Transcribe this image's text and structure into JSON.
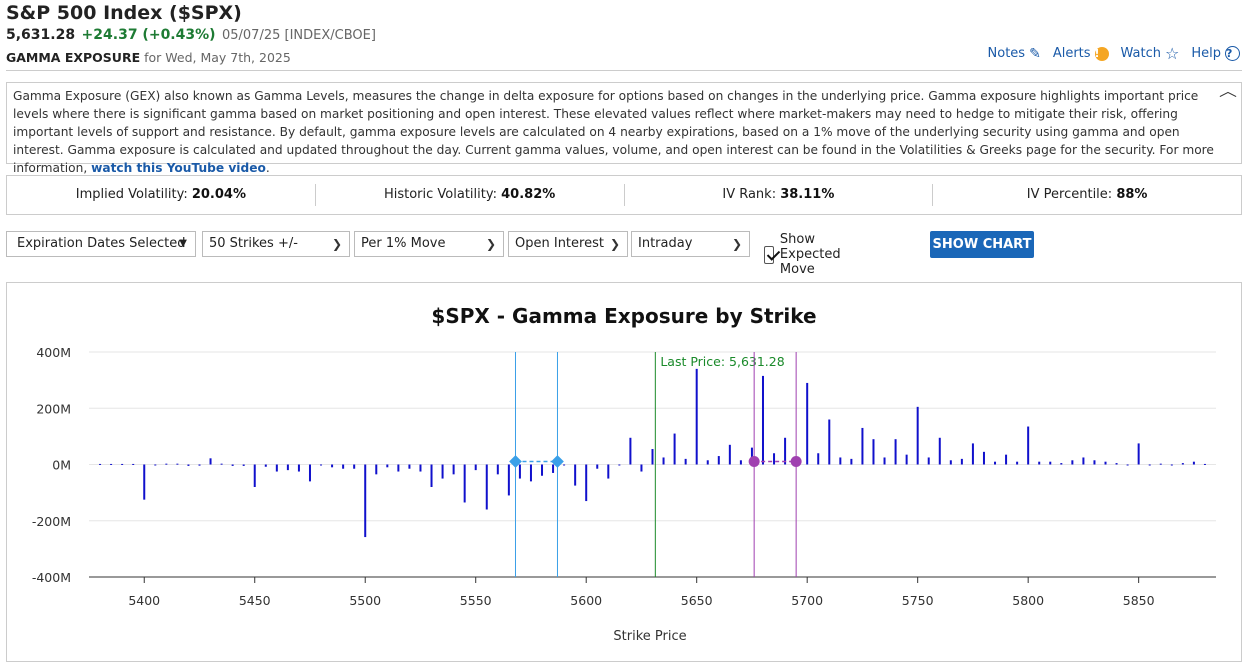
{
  "header": {
    "title": "S&P 500 Index ($SPX)",
    "last": "5,631.28",
    "change": "+24.37 (+0.43%)",
    "meta": "05/07/25 [INDEX/CBOE]",
    "section_label": "GAMMA EXPOSURE",
    "section_date": "for Wed, May 7th, 2025"
  },
  "toplinks": {
    "notes": "Notes",
    "alerts": "Alerts",
    "watch": "Watch",
    "help": "Help"
  },
  "icons": {
    "notes": "edit-icon",
    "alerts": "alert-icon",
    "watch": "star-icon",
    "help": "help-icon",
    "collapse": "chevron-up-icon"
  },
  "description": {
    "text": "Gamma Exposure (GEX) also known as Gamma Levels, measures the change in delta exposure for options based on changes in the underlying price. Gamma exposure highlights important price levels where there is significant gamma based on market positioning and open interest. These elevated values reflect where market-makers may need to hedge to mitigate their risk, offering important levels of support and resistance. By default, gamma exposure levels are calculated on 4 nearby expirations, based on a 1% move of the underlying security using gamma and open interest. Gamma exposure is calculated and updated throughout the day. Current gamma values, volume, and open interest can be found in the Volatilities & Greeks page for the security. For more information, ",
    "link": "watch this YouTube video",
    "tail": "."
  },
  "stats": [
    {
      "label": "Implied Volatility: ",
      "value": "20.04%"
    },
    {
      "label": "Historic Volatility: ",
      "value": "40.82%"
    },
    {
      "label": "IV Rank: ",
      "value": "38.11%"
    },
    {
      "label": "IV Percentile: ",
      "value": "88%"
    }
  ],
  "controls": {
    "expiration": "Expiration Dates Selected",
    "strikes": "50 Strikes +/-",
    "move": "Per 1% Move",
    "metric": "Open Interest",
    "timeframe": "Intraday",
    "expected_move_label": "Show Expected Move",
    "expected_move_checked": true,
    "show_chart": "SHOW CHART"
  },
  "chart_data": {
    "type": "bar",
    "title": "$SPX - Gamma Exposure by Strike",
    "xlabel": "Strike Price",
    "ylabel": "",
    "xlim": [
      5375,
      5885
    ],
    "ylim": [
      -400,
      400
    ],
    "x_ticks": [
      5400,
      5450,
      5500,
      5550,
      5600,
      5650,
      5700,
      5750,
      5800,
      5850
    ],
    "y_ticks": [
      {
        "value": 400,
        "label": "400M"
      },
      {
        "value": 200,
        "label": "200M"
      },
      {
        "value": 0,
        "label": "0M"
      },
      {
        "value": -200,
        "label": "-200M"
      },
      {
        "value": -400,
        "label": "-400M"
      }
    ],
    "grid": true,
    "bar_color": "#1010cc",
    "strikes": [
      5380,
      5385,
      5390,
      5395,
      5400,
      5405,
      5410,
      5415,
      5420,
      5425,
      5430,
      5435,
      5440,
      5445,
      5450,
      5455,
      5460,
      5465,
      5470,
      5475,
      5480,
      5485,
      5490,
      5495,
      5500,
      5505,
      5510,
      5515,
      5520,
      5525,
      5530,
      5535,
      5540,
      5545,
      5550,
      5555,
      5560,
      5565,
      5570,
      5575,
      5580,
      5585,
      5590,
      5595,
      5600,
      5605,
      5610,
      5615,
      5620,
      5625,
      5630,
      5635,
      5640,
      5645,
      5650,
      5655,
      5660,
      5665,
      5670,
      5675,
      5680,
      5685,
      5690,
      5695,
      5700,
      5705,
      5710,
      5715,
      5720,
      5725,
      5730,
      5735,
      5740,
      5745,
      5750,
      5755,
      5760,
      5765,
      5770,
      5775,
      5780,
      5785,
      5790,
      5795,
      5800,
      5805,
      5810,
      5815,
      5820,
      5825,
      5830,
      5835,
      5840,
      5845,
      5850,
      5855,
      5860,
      5865,
      5870,
      5875,
      5880
    ],
    "values": [
      2,
      2,
      2,
      2,
      -125,
      0,
      3,
      3,
      -5,
      -4,
      22,
      3,
      -5,
      -5,
      -80,
      -8,
      -25,
      -20,
      -25,
      -60,
      0,
      -10,
      -15,
      -15,
      -258,
      -35,
      -10,
      -25,
      -15,
      -25,
      -80,
      -50,
      -35,
      -135,
      -20,
      -160,
      -35,
      -110,
      -50,
      -60,
      -40,
      -30,
      0,
      -75,
      -130,
      -15,
      -50,
      0,
      95,
      -25,
      55,
      25,
      110,
      20,
      340,
      15,
      30,
      70,
      15,
      60,
      315,
      40,
      95,
      0,
      290,
      40,
      160,
      25,
      20,
      130,
      90,
      25,
      90,
      35,
      205,
      25,
      95,
      15,
      20,
      75,
      45,
      10,
      35,
      10,
      135,
      10,
      10,
      5,
      15,
      25,
      15,
      10,
      5,
      0,
      75,
      0,
      3,
      0,
      5,
      10,
      2
    ],
    "annotations": {
      "last_price": {
        "x": 5631.28,
        "label": "Last Price: 5,631.28",
        "color": "#1a8a2a"
      },
      "expected_move_low": {
        "x1": 5568,
        "x2": 5587,
        "color": "#3aa0e8"
      },
      "expected_move_high": {
        "x1": 5676,
        "x2": 5695,
        "color": "#a040b0"
      }
    }
  }
}
